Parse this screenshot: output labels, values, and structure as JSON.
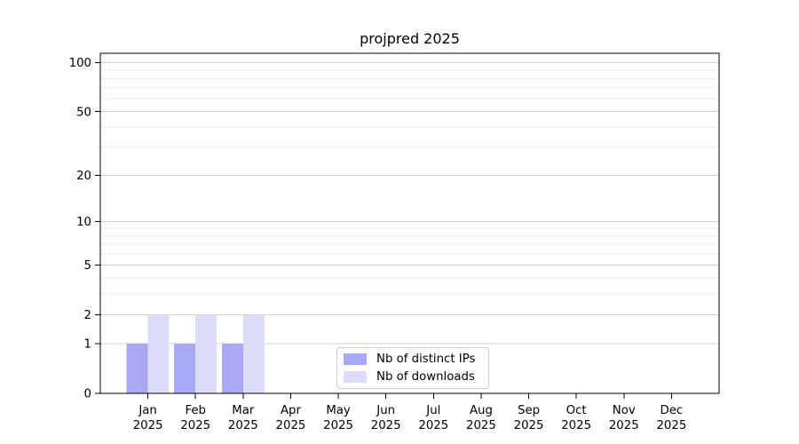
{
  "chart_data": {
    "type": "bar",
    "title": "projpred 2025",
    "categories": [
      "Jan",
      "Feb",
      "Mar",
      "Apr",
      "May",
      "Jun",
      "Jul",
      "Aug",
      "Sep",
      "Oct",
      "Nov",
      "Dec"
    ],
    "category_sublabel": "2025",
    "series": [
      {
        "name": "Nb of distinct IPs",
        "color": "#a8a8f4",
        "values": [
          1,
          1,
          1,
          0,
          0,
          0,
          0,
          0,
          0,
          0,
          0,
          0
        ]
      },
      {
        "name": "Nb of downloads",
        "color": "#dcdcf9",
        "values": [
          2,
          2,
          2,
          0,
          0,
          0,
          0,
          0,
          0,
          0,
          0,
          0
        ]
      }
    ],
    "xlabel": "",
    "ylabel": "",
    "y_scale": "log1p",
    "ylim": [
      0,
      114
    ],
    "y_major_ticks": [
      0,
      1,
      2,
      5,
      10,
      20,
      50,
      100
    ],
    "y_minor_ticks": [
      3,
      4,
      6,
      7,
      8,
      9,
      30,
      40,
      60,
      70,
      80,
      90
    ],
    "grid": true,
    "legend_position": "lower center",
    "colors": {
      "frame": "#000000",
      "grid_major": "#d0d0d0",
      "grid_minor": "#ebebeb",
      "text": "#000000"
    }
  }
}
